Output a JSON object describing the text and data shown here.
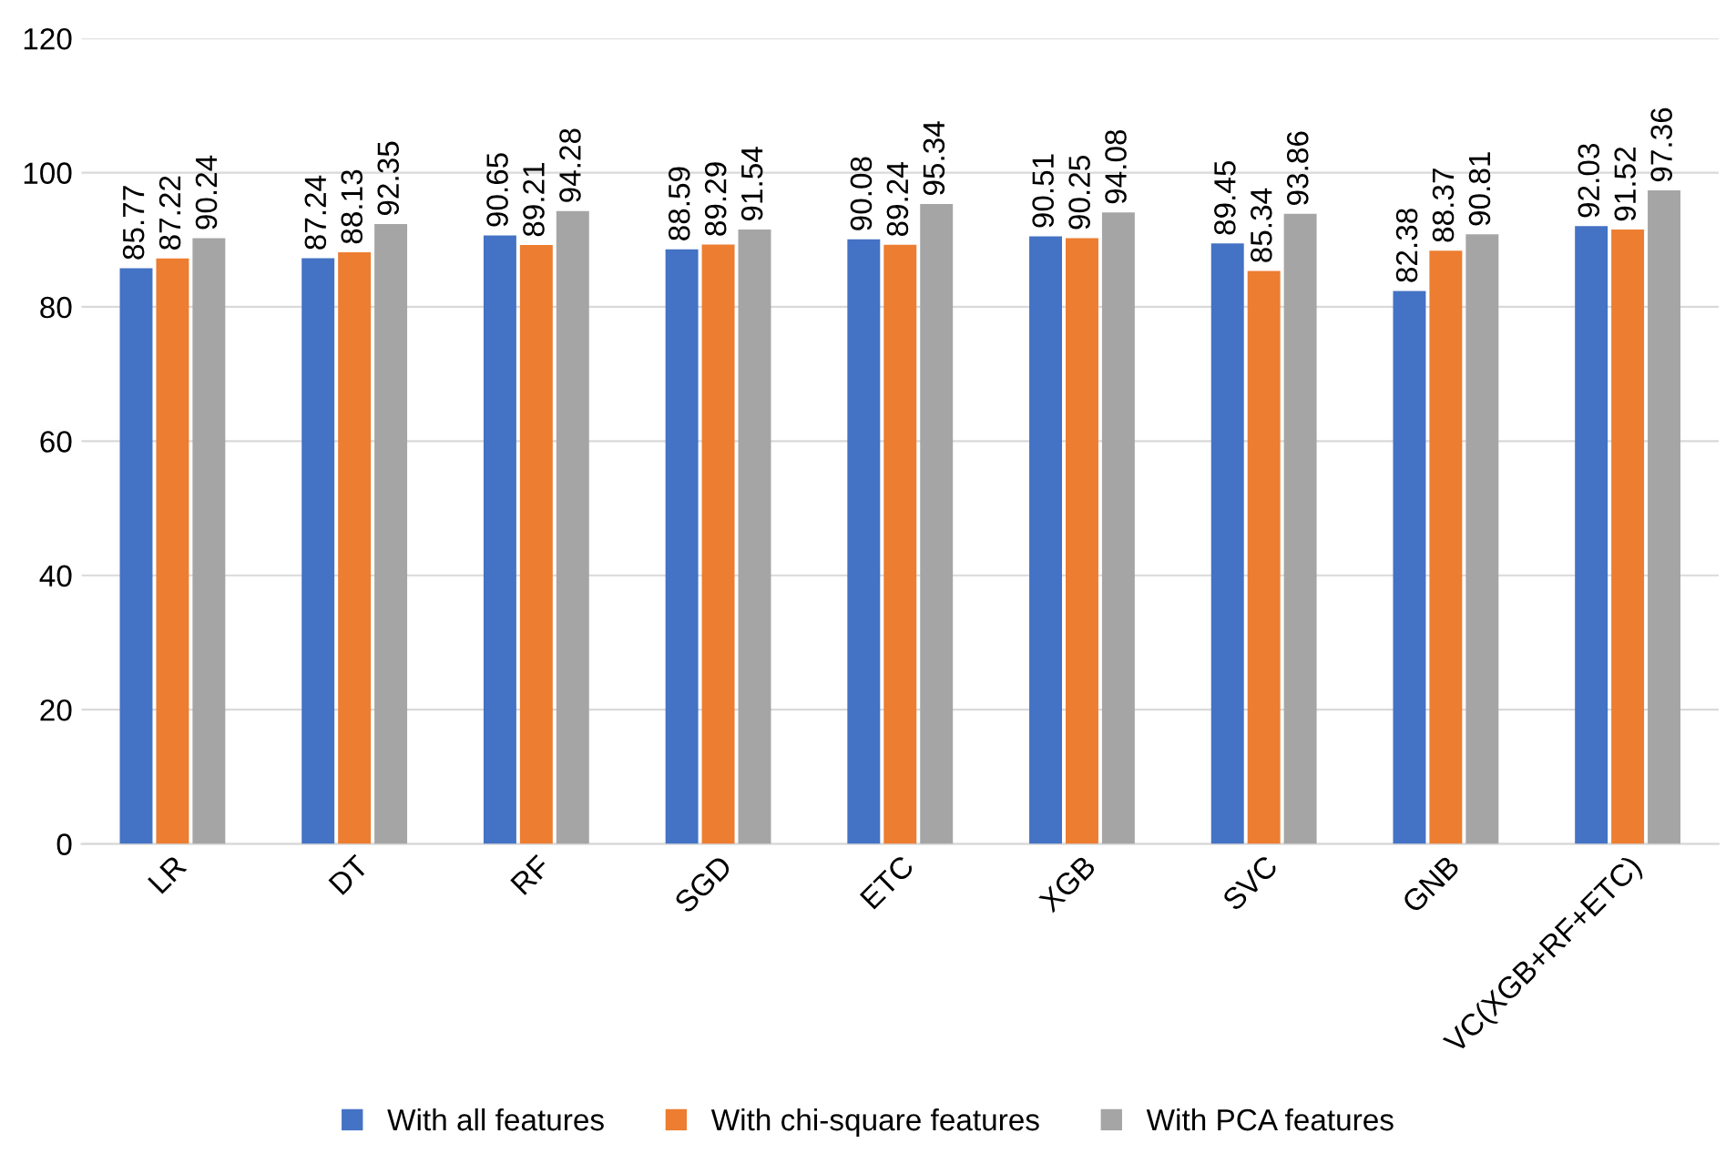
{
  "chart_data": {
    "type": "bar",
    "categories": [
      "LR",
      "DT",
      "RF",
      "SGD",
      "ETC",
      "XGB",
      "SVC",
      "GNB",
      "VC(XGB+RF+ETC)"
    ],
    "series": [
      {
        "name": "With all features",
        "color": "#4472c4",
        "values": [
          85.77,
          87.24,
          90.65,
          88.59,
          90.08,
          90.51,
          89.45,
          82.38,
          92.03
        ]
      },
      {
        "name": "With chi-square features",
        "color": "#ed7d31",
        "values": [
          87.22,
          88.13,
          89.21,
          89.29,
          89.24,
          90.25,
          85.34,
          88.37,
          91.52
        ]
      },
      {
        "name": "With PCA features",
        "color": "#a5a5a5",
        "values": [
          90.24,
          92.35,
          94.28,
          91.54,
          95.34,
          94.08,
          93.86,
          90.81,
          97.36
        ]
      }
    ],
    "ylim": [
      0,
      120
    ],
    "yticks": [
      0,
      20,
      40,
      60,
      80,
      100,
      120
    ],
    "grid": "y",
    "legend": "bottom",
    "data_labels": true
  }
}
